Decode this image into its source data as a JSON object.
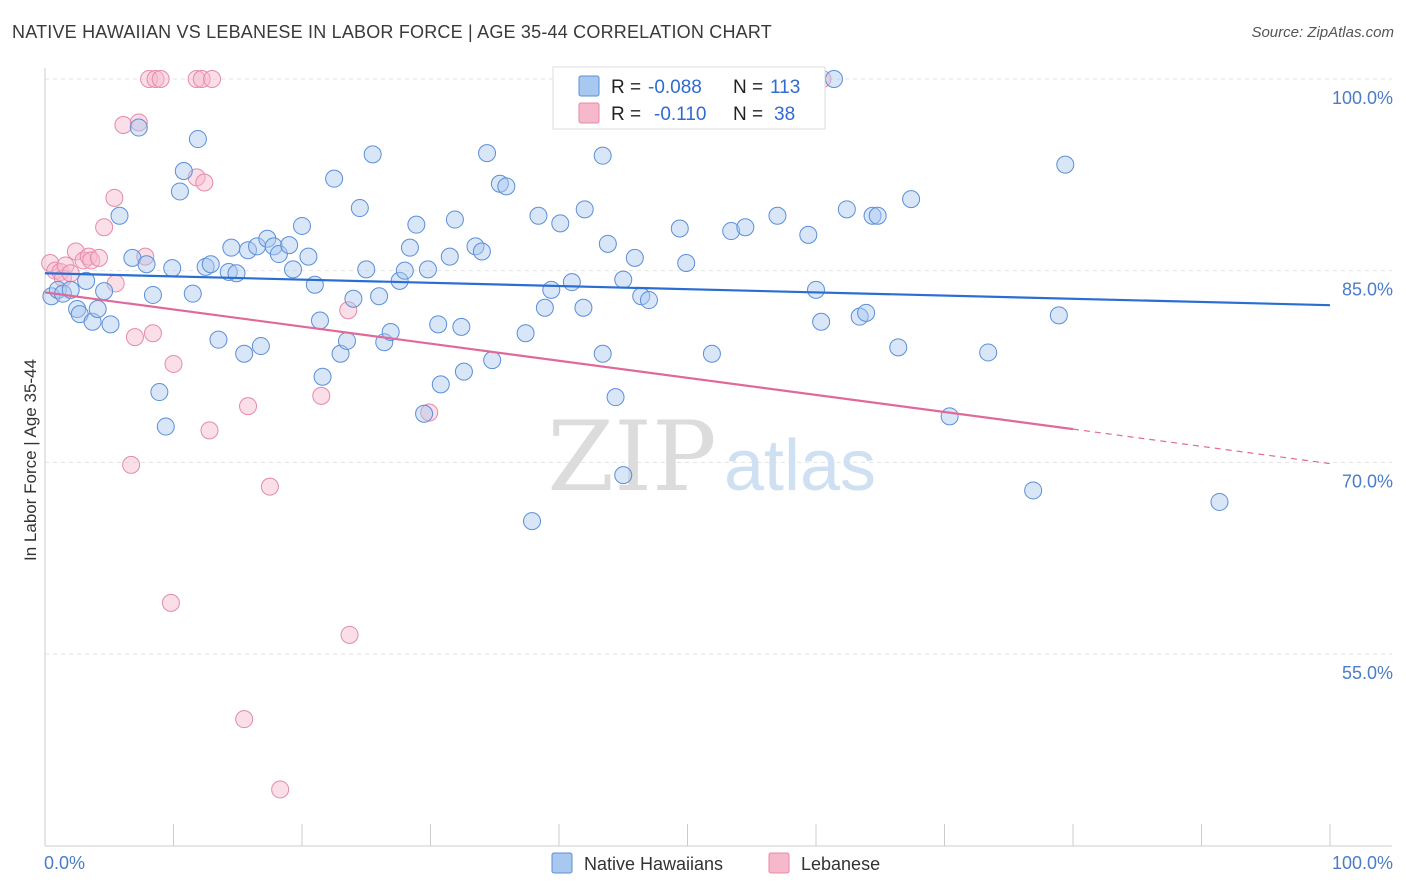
{
  "title": "NATIVE HAWAIIAN VS LEBANESE IN LABOR FORCE | AGE 35-44 CORRELATION CHART",
  "source": "Source: ZipAtlas.com",
  "watermark": {
    "zip": "ZIP",
    "atlas": "atlas"
  },
  "colors": {
    "blue": "#a9c8f0",
    "blue_edge": "#5b8fd8",
    "blue_line": "#2a6dd3",
    "pink": "#f6b9cc",
    "pink_edge": "#e58aa8",
    "pink_line": "#e0699a",
    "axis_text": "#4a7cc9"
  },
  "legend": {
    "r_label": "R =",
    "n_label": "N =",
    "rows": [
      {
        "r": "-0.088",
        "n": "113",
        "series": "Native Hawaiians"
      },
      {
        "r": "-0.110",
        "n": "38",
        "series": "Lebanese"
      }
    ]
  },
  "chart_data": {
    "type": "scatter",
    "title": "NATIVE HAWAIIAN VS LEBANESE IN LABOR FORCE | AGE 35-44 CORRELATION CHART",
    "xlabel": "",
    "ylabel": "In Labor Force | Age 35-44",
    "xlim": [
      0,
      100
    ],
    "ylim": [
      40,
      102
    ],
    "x_tick_labels": [
      "0.0%",
      "100.0%"
    ],
    "y_ticks": [
      100,
      85,
      70,
      55
    ],
    "y_tick_labels": [
      "100.0%",
      "85.0%",
      "70.0%",
      "55.0%"
    ],
    "grid": true,
    "series": [
      {
        "name": "Native Hawaiians",
        "r": -0.088,
        "n": 113,
        "trend": {
          "x0": 0,
          "y0": 84.8,
          "x1": 100,
          "y1": 82.3
        },
        "points": [
          [
            0.5,
            83
          ],
          [
            1,
            83.5
          ],
          [
            1.4,
            83.2
          ],
          [
            2,
            83.5
          ],
          [
            2.5,
            82
          ],
          [
            2.7,
            81.6
          ],
          [
            3.2,
            84.2
          ],
          [
            3.7,
            81
          ],
          [
            4.1,
            82
          ],
          [
            4.6,
            83.4
          ],
          [
            5.1,
            80.8
          ],
          [
            5.8,
            89.3
          ],
          [
            6.8,
            86
          ],
          [
            7.3,
            96.2
          ],
          [
            7.9,
            85.5
          ],
          [
            8.4,
            83.1
          ],
          [
            8.9,
            75.5
          ],
          [
            9.4,
            72.8
          ],
          [
            9.9,
            85.2
          ],
          [
            10.5,
            91.2
          ],
          [
            10.8,
            92.8
          ],
          [
            11.5,
            83.2
          ],
          [
            11.9,
            95.3
          ],
          [
            12.5,
            85.3
          ],
          [
            12.9,
            85.5
          ],
          [
            13.5,
            79.6
          ],
          [
            14.3,
            84.9
          ],
          [
            14.5,
            86.8
          ],
          [
            14.9,
            84.8
          ],
          [
            15.5,
            78.5
          ],
          [
            15.8,
            86.6
          ],
          [
            16.5,
            86.9
          ],
          [
            16.8,
            79.1
          ],
          [
            17.3,
            87.5
          ],
          [
            17.8,
            86.9
          ],
          [
            18.2,
            86.3
          ],
          [
            19,
            87
          ],
          [
            19.3,
            85.1
          ],
          [
            20,
            88.5
          ],
          [
            20.5,
            86.1
          ],
          [
            21,
            83.9
          ],
          [
            21.4,
            81.1
          ],
          [
            21.6,
            76.7
          ],
          [
            22.5,
            92.2
          ],
          [
            23,
            78.5
          ],
          [
            23.5,
            79.5
          ],
          [
            24,
            82.8
          ],
          [
            24.5,
            89.9
          ],
          [
            25,
            85.1
          ],
          [
            25.5,
            94.1
          ],
          [
            26,
            83
          ],
          [
            26.4,
            79.4
          ],
          [
            26.9,
            80.2
          ],
          [
            27.6,
            84.2
          ],
          [
            28,
            85
          ],
          [
            28.4,
            86.8
          ],
          [
            28.9,
            88.6
          ],
          [
            29.5,
            73.8
          ],
          [
            29.8,
            85.1
          ],
          [
            30.6,
            80.8
          ],
          [
            30.8,
            76.1
          ],
          [
            31.5,
            86.1
          ],
          [
            31.9,
            89
          ],
          [
            32.4,
            80.6
          ],
          [
            32.6,
            77.1
          ],
          [
            33.5,
            86.9
          ],
          [
            34,
            86.5
          ],
          [
            34.4,
            94.2
          ],
          [
            34.8,
            78
          ],
          [
            35.4,
            91.8
          ],
          [
            35.9,
            91.6
          ],
          [
            37.4,
            80.1
          ],
          [
            37.9,
            65.4
          ],
          [
            38.4,
            89.3
          ],
          [
            38.9,
            82.1
          ],
          [
            39.4,
            83.5
          ],
          [
            40.1,
            88.7
          ],
          [
            41,
            84.1
          ],
          [
            41.9,
            82.1
          ],
          [
            42,
            89.8
          ],
          [
            43.4,
            78.5
          ],
          [
            43.4,
            94
          ],
          [
            43.8,
            87.1
          ],
          [
            44.4,
            75.1
          ],
          [
            45,
            84.3
          ],
          [
            45,
            69
          ],
          [
            45.9,
            86
          ],
          [
            46.4,
            83
          ],
          [
            47,
            82.7
          ],
          [
            49.4,
            88.3
          ],
          [
            49.9,
            85.6
          ],
          [
            51.9,
            78.5
          ],
          [
            53.4,
            88.1
          ],
          [
            54.5,
            88.4
          ],
          [
            57,
            89.3
          ],
          [
            59.4,
            87.8
          ],
          [
            60,
            83.5
          ],
          [
            60.4,
            81
          ],
          [
            62.4,
            89.8
          ],
          [
            63.4,
            81.4
          ],
          [
            63.9,
            81.7
          ],
          [
            64.4,
            89.3
          ],
          [
            64.8,
            89.3
          ],
          [
            66.4,
            79
          ],
          [
            67.4,
            90.6
          ],
          [
            70.4,
            73.6
          ],
          [
            73.4,
            78.6
          ],
          [
            76.9,
            67.8
          ],
          [
            78.9,
            81.5
          ],
          [
            79.4,
            93.3
          ],
          [
            91.4,
            66.9
          ],
          [
            61.4,
            100
          ]
        ]
      },
      {
        "name": "Lebanese",
        "r": -0.11,
        "n": 38,
        "trend": {
          "x0": 0,
          "y0": 83.3,
          "x1": 80,
          "y1": 72.6
        },
        "trend_dashed": {
          "x0": 80,
          "y0": 72.6,
          "x1": 100,
          "y1": 69.9
        },
        "points": [
          [
            0.4,
            85.6
          ],
          [
            0.8,
            85
          ],
          [
            1.2,
            84.9
          ],
          [
            1.4,
            84.4
          ],
          [
            1.6,
            85.4
          ],
          [
            2,
            84.8
          ],
          [
            2.4,
            86.5
          ],
          [
            3,
            85.8
          ],
          [
            3.4,
            86.1
          ],
          [
            3.6,
            85.8
          ],
          [
            4.2,
            86
          ],
          [
            4.6,
            88.4
          ],
          [
            5.5,
            84
          ],
          [
            5.4,
            90.7
          ],
          [
            6.1,
            96.4
          ],
          [
            6.7,
            69.8
          ],
          [
            7,
            79.8
          ],
          [
            7.3,
            96.6
          ],
          [
            7.8,
            86.1
          ],
          [
            8.4,
            80.1
          ],
          [
            8.1,
            100
          ],
          [
            8.6,
            100
          ],
          [
            9,
            100
          ],
          [
            9.8,
            59
          ],
          [
            10,
            77.7
          ],
          [
            11.8,
            92.3
          ],
          [
            12.4,
            91.9
          ],
          [
            12.8,
            72.5
          ],
          [
            11.8,
            100
          ],
          [
            12.2,
            100
          ],
          [
            13,
            100
          ],
          [
            15.5,
            49.9
          ],
          [
            15.8,
            74.4
          ],
          [
            17.5,
            68.1
          ],
          [
            18.3,
            44.4
          ],
          [
            21.5,
            75.2
          ],
          [
            23.6,
            81.9
          ],
          [
            23.7,
            56.5
          ],
          [
            29.9,
            73.9
          ],
          [
            60.5,
            100
          ]
        ]
      }
    ]
  },
  "bottom_legend": [
    {
      "label": "Native Hawaiians"
    },
    {
      "label": "Lebanese"
    }
  ]
}
